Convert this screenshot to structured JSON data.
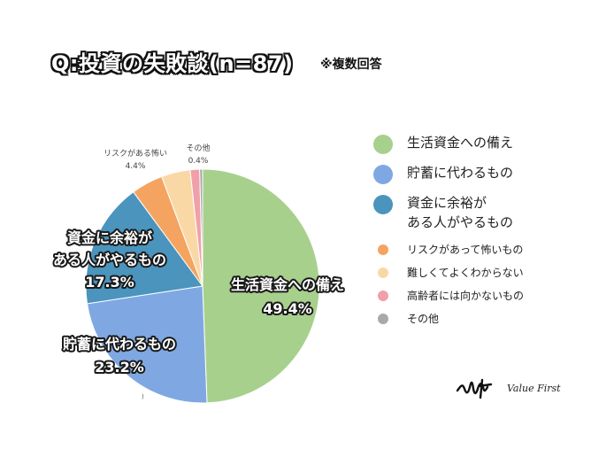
{
  "title": "Q:投資の失敗談(n=87)",
  "note": "※複数回答",
  "brand": "Value First",
  "chart_data": {
    "type": "pie",
    "slices": [
      {
        "label": "生活資金への備え",
        "value": 49.4,
        "pct_label": "49.4%",
        "color": "#a8d08d",
        "chart_label": [
          "生活資金への備え"
        ],
        "label_style": "outline",
        "label_pos": "inside"
      },
      {
        "label": "貯蓄に代わるもの",
        "value": 23.2,
        "pct_label": "23.2%",
        "color": "#7fa8e3",
        "chart_label": [
          "貯蓄に代わるもの"
        ],
        "label_style": "outline",
        "label_pos": "outside"
      },
      {
        "label": "資金に余裕がある人がやるもの",
        "value": 17.3,
        "pct_label": "17.3%",
        "color": "#4a94bd",
        "chart_label": [
          "資金に余裕が",
          "ある人がやるもの"
        ],
        "label_style": "outline",
        "label_pos": "outside"
      },
      {
        "label": "リスクがあって怖いもの",
        "value": 4.4,
        "pct_label": "4.4%",
        "color": "#f4a460",
        "chart_label": [
          "リスクがある怖い"
        ],
        "label_style": "small",
        "label_pos": "outside"
      },
      {
        "label": "難しくてよくわからない",
        "value": 4.0,
        "pct_label": "",
        "color": "#fad8a6",
        "chart_label": [],
        "label_style": "none",
        "label_pos": "none"
      },
      {
        "label": "高齢者には向かないもの",
        "value": 1.3,
        "pct_label": "",
        "color": "#f0a0a8",
        "chart_label": [],
        "label_style": "none",
        "label_pos": "none"
      },
      {
        "label": "その他",
        "value": 0.4,
        "pct_label": "0.4%",
        "color": "#a9a9a9",
        "chart_label": [
          "その他"
        ],
        "label_style": "small",
        "label_pos": "outside"
      }
    ],
    "stray_mark": ")"
  },
  "legend": [
    {
      "label": "生活資金への備え",
      "color": "#a8d08d",
      "size": "big"
    },
    {
      "label": "貯蓄に代わるもの",
      "color": "#7fa8e3",
      "size": "big"
    },
    {
      "label": "資金に余裕が\nある人がやるもの",
      "color": "#4a94bd",
      "size": "big"
    },
    {
      "label": "リスクがあって怖いもの",
      "color": "#f4a460",
      "size": "small"
    },
    {
      "label": "難しくてよくわからない",
      "color": "#fad8a6",
      "size": "small"
    },
    {
      "label": "高齢者には向かないもの",
      "color": "#f0a0a8",
      "size": "small"
    },
    {
      "label": "その他",
      "color": "#a9a9a9",
      "size": "small"
    }
  ]
}
